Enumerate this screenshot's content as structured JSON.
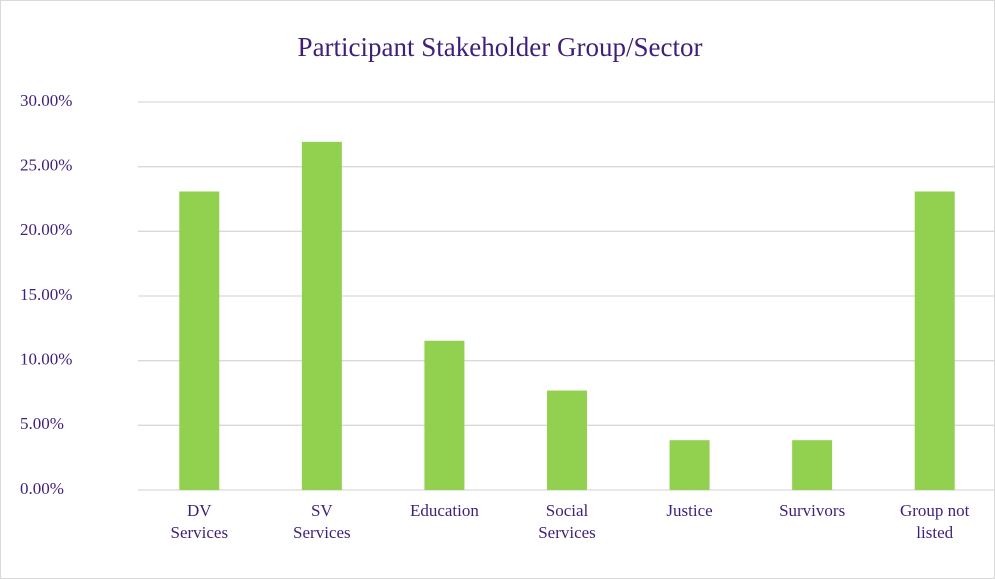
{
  "chart_data": {
    "type": "bar",
    "title": "Participant Stakeholder Group/Sector",
    "categories": [
      "DV\nServices",
      "SV\nServices",
      "Education",
      "Social\nServices",
      "Justice",
      "Survivors",
      "Group not\nlisted"
    ],
    "values": [
      23.08,
      26.92,
      11.54,
      7.69,
      3.85,
      3.85,
      23.08
    ],
    "color": "#92d050",
    "ylim": [
      0,
      30
    ],
    "yticks": [
      {
        "value": 0,
        "label": "0.00%"
      },
      {
        "value": 5,
        "label": "5.00%"
      },
      {
        "value": 10,
        "label": "10.00%"
      },
      {
        "value": 15,
        "label": "15.00%"
      },
      {
        "value": 20,
        "label": "20.00%"
      },
      {
        "value": 25,
        "label": "25.00%"
      },
      {
        "value": 30,
        "label": "30.00%"
      }
    ],
    "grid": true
  }
}
